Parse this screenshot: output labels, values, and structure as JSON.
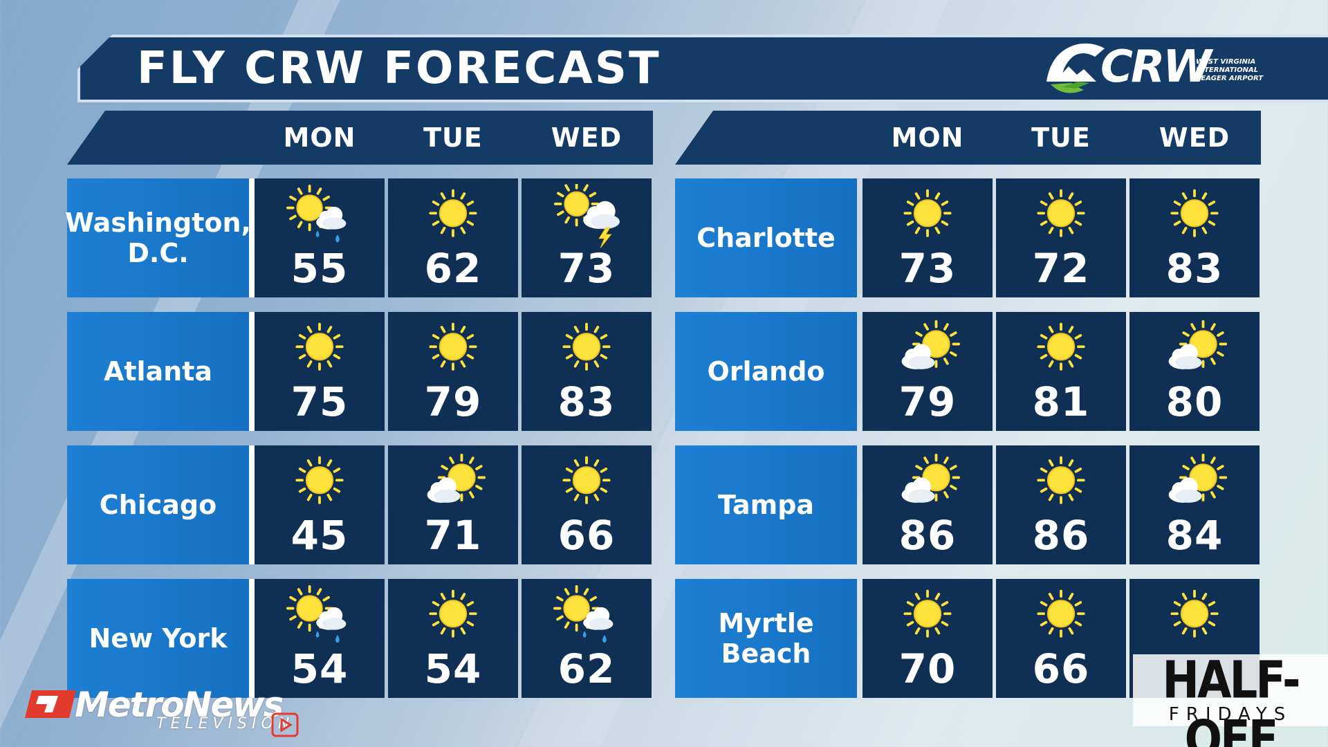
{
  "header": {
    "title": "FLY CRW FORECAST"
  },
  "logo": {
    "brand": "CRW",
    "subtitle_lines": [
      "WEST VIRGINIA",
      "INTERNATIONAL",
      "YEAGER AIRPORT"
    ],
    "icon": "mountain-plane-logo-icon"
  },
  "days": [
    "MON",
    "TUE",
    "WED"
  ],
  "colors": {
    "header_navy": "#143b66",
    "cell_navy": "#0f2f55",
    "city_blue": "#1d80d4",
    "sun_yellow": "#fde23c"
  },
  "left_panel": {
    "rows": [
      {
        "city": "Washington, D.C.",
        "forecast": [
          {
            "temp": "55",
            "icon": "sun-cloud-rain-icon"
          },
          {
            "temp": "62",
            "icon": "sun-icon"
          },
          {
            "temp": "73",
            "icon": "sun-cloud-thunder-icon"
          }
        ]
      },
      {
        "city": "Atlanta",
        "forecast": [
          {
            "temp": "75",
            "icon": "sun-icon"
          },
          {
            "temp": "79",
            "icon": "sun-icon"
          },
          {
            "temp": "83",
            "icon": "sun-icon"
          }
        ]
      },
      {
        "city": "Chicago",
        "forecast": [
          {
            "temp": "45",
            "icon": "sun-icon"
          },
          {
            "temp": "71",
            "icon": "partly-cloudy-icon"
          },
          {
            "temp": "66",
            "icon": "sun-icon"
          }
        ]
      },
      {
        "city": "New York",
        "forecast": [
          {
            "temp": "54",
            "icon": "sun-cloud-rain-icon"
          },
          {
            "temp": "54",
            "icon": "sun-icon"
          },
          {
            "temp": "62",
            "icon": "sun-cloud-rain-icon"
          }
        ]
      }
    ]
  },
  "right_panel": {
    "rows": [
      {
        "city": "Charlotte",
        "forecast": [
          {
            "temp": "73",
            "icon": "sun-icon"
          },
          {
            "temp": "72",
            "icon": "sun-icon"
          },
          {
            "temp": "83",
            "icon": "sun-icon"
          }
        ]
      },
      {
        "city": "Orlando",
        "forecast": [
          {
            "temp": "79",
            "icon": "partly-cloudy-icon"
          },
          {
            "temp": "81",
            "icon": "sun-icon"
          },
          {
            "temp": "80",
            "icon": "partly-cloudy-icon"
          }
        ]
      },
      {
        "city": "Tampa",
        "forecast": [
          {
            "temp": "86",
            "icon": "partly-cloudy-icon"
          },
          {
            "temp": "86",
            "icon": "sun-icon"
          },
          {
            "temp": "84",
            "icon": "partly-cloudy-icon"
          }
        ]
      },
      {
        "city": "Myrtle Beach",
        "forecast": [
          {
            "temp": "70",
            "icon": "sun-icon"
          },
          {
            "temp": "66",
            "icon": "sun-icon"
          },
          {
            "temp": "",
            "icon": "sun-icon"
          }
        ]
      }
    ]
  },
  "footer": {
    "metronews": {
      "brand": "MetroNews",
      "sub": "TELEVISION",
      "icon": "metronews-logo-icon"
    },
    "promo": {
      "main": "HALF-OFF",
      "sub": "FRIDAYS"
    }
  }
}
